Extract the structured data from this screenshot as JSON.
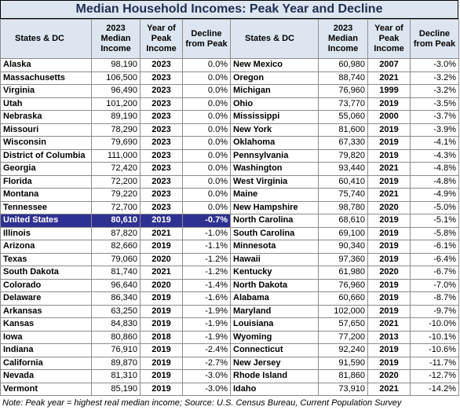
{
  "title": "Median Household Incomes: Peak Year and Decline",
  "headers": {
    "state": "States & DC",
    "income": "2023 Median Income",
    "peak_year": "Year of Peak Income",
    "decline": "Decline from Peak"
  },
  "chart_data": {
    "type": "table",
    "columns": [
      "States & DC",
      "2023 Median Income",
      "Year of Peak Income",
      "Decline from Peak"
    ],
    "left_rows": [
      [
        "Alaska",
        "98,190",
        "2023",
        "0.0%"
      ],
      [
        "Massachusetts",
        "106,500",
        "2023",
        "0.0%"
      ],
      [
        "Virginia",
        "96,490",
        "2023",
        "0.0%"
      ],
      [
        "Utah",
        "101,200",
        "2023",
        "0.0%"
      ],
      [
        "Nebraska",
        "89,190",
        "2023",
        "0.0%"
      ],
      [
        "Missouri",
        "78,290",
        "2023",
        "0.0%"
      ],
      [
        "Wisconsin",
        "79,690",
        "2023",
        "0.0%"
      ],
      [
        "District of Columbia",
        "111,000",
        "2023",
        "0.0%"
      ],
      [
        "Georgia",
        "72,420",
        "2023",
        "0.0%"
      ],
      [
        "Florida",
        "72,200",
        "2023",
        "0.0%"
      ],
      [
        "Montana",
        "79,220",
        "2023",
        "0.0%"
      ],
      [
        "Tennessee",
        "72,700",
        "2023",
        "0.0%"
      ],
      [
        "United States",
        "80,610",
        "2019",
        "-0.7%"
      ],
      [
        "Illinois",
        "87,820",
        "2021",
        "-1.0%"
      ],
      [
        "Arizona",
        "82,660",
        "2019",
        "-1.1%"
      ],
      [
        "Texas",
        "79,060",
        "2020",
        "-1.2%"
      ],
      [
        "South Dakota",
        "81,740",
        "2021",
        "-1.2%"
      ],
      [
        "Colorado",
        "96,640",
        "2020",
        "-1.4%"
      ],
      [
        "Delaware",
        "86,340",
        "2019",
        "-1.6%"
      ],
      [
        "Arkansas",
        "63,250",
        "2019",
        "-1.9%"
      ],
      [
        "Kansas",
        "84,830",
        "2019",
        "-1.9%"
      ],
      [
        "Iowa",
        "80,860",
        "2018",
        "-1.9%"
      ],
      [
        "Indiana",
        "76,910",
        "2019",
        "-2.4%"
      ],
      [
        "California",
        "89,870",
        "2019",
        "-2.7%"
      ],
      [
        "Nevada",
        "81,310",
        "2019",
        "-3.0%"
      ],
      [
        "Vermont",
        "85,190",
        "2019",
        "-3.0%"
      ]
    ],
    "right_rows": [
      [
        "New Mexico",
        "60,980",
        "2007",
        "-3.0%"
      ],
      [
        "Oregon",
        "88,740",
        "2021",
        "-3.2%"
      ],
      [
        "Michigan",
        "76,960",
        "1999",
        "-3.2%"
      ],
      [
        "Ohio",
        "73,770",
        "2019",
        "-3.5%"
      ],
      [
        "Mississippi",
        "55,060",
        "2000",
        "-3.7%"
      ],
      [
        "New York",
        "81,600",
        "2019",
        "-3.9%"
      ],
      [
        "Oklahoma",
        "67,330",
        "2019",
        "-4.1%"
      ],
      [
        "Pennsylvania",
        "79,820",
        "2019",
        "-4.3%"
      ],
      [
        "Washington",
        "93,440",
        "2021",
        "-4.8%"
      ],
      [
        "West Virginia",
        "60,410",
        "2019",
        "-4.8%"
      ],
      [
        "Maine",
        "75,740",
        "2021",
        "-4.9%"
      ],
      [
        "New Hampshire",
        "98,780",
        "2020",
        "-5.0%"
      ],
      [
        "North Carolina",
        "68,610",
        "2019",
        "-5.1%"
      ],
      [
        "South Carolina",
        "69,100",
        "2019",
        "-5.8%"
      ],
      [
        "Minnesota",
        "90,340",
        "2019",
        "-6.1%"
      ],
      [
        "Hawaii",
        "97,360",
        "2019",
        "-6.4%"
      ],
      [
        "Kentucky",
        "61,980",
        "2020",
        "-6.7%"
      ],
      [
        "North Dakota",
        "76,960",
        "2019",
        "-7.0%"
      ],
      [
        "Alabama",
        "60,660",
        "2019",
        "-8.7%"
      ],
      [
        "Maryland",
        "102,000",
        "2019",
        "-9.7%"
      ],
      [
        "Louisiana",
        "57,650",
        "2021",
        "-10.0%"
      ],
      [
        "Wyoming",
        "77,200",
        "2013",
        "-10.1%"
      ],
      [
        "Connecticut",
        "92,240",
        "2019",
        "-10.6%"
      ],
      [
        "New Jersey",
        "91,590",
        "2019",
        "-11.7%"
      ],
      [
        "Rhode Island",
        "81,860",
        "2020",
        "-12.7%"
      ],
      [
        "Idaho",
        "73,910",
        "2021",
        "-14.2%"
      ]
    ],
    "highlight_row": "United States",
    "highlight_color": "#2e3192",
    "header_color": "#dce6f1"
  },
  "note": "Note: Peak year = highest real median income; Source:  U.S. Census Bureau, Current Population Survey"
}
